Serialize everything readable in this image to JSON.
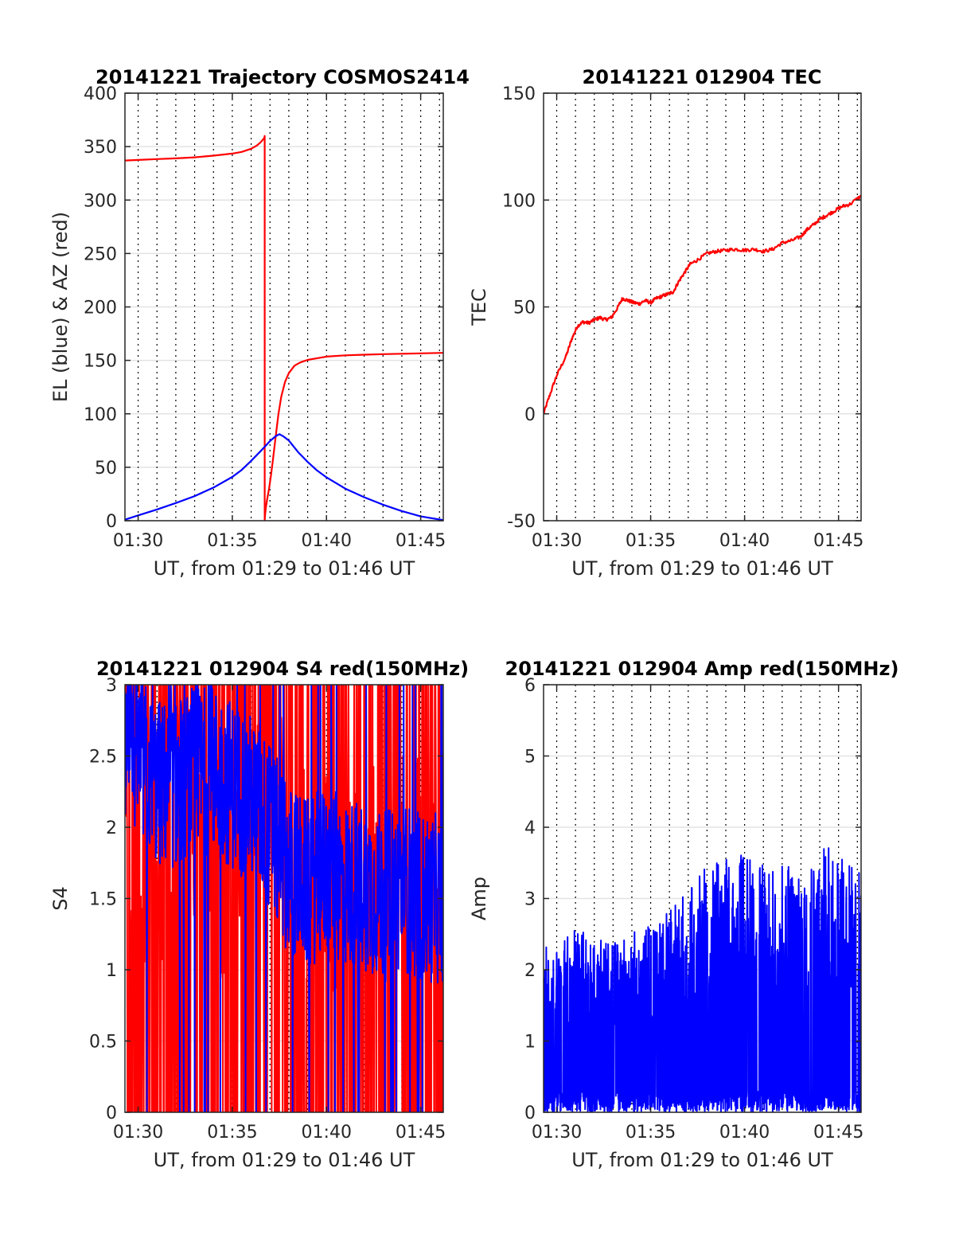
{
  "chart_data": [
    {
      "id": "trajectory",
      "type": "line",
      "title": "20141221 Trajectory COSMOS2414",
      "xlabel": "UT, from 01:29 to 01:46 UT",
      "ylabel": "EL (blue) & AZ (red)",
      "xlim": [
        29.3,
        46.2
      ],
      "ylim": [
        0,
        400
      ],
      "xticks": [
        30,
        35,
        40,
        45
      ],
      "xtick_labels": [
        "01:30",
        "01:35",
        "01:40",
        "01:45"
      ],
      "yticks": [
        0,
        50,
        100,
        150,
        200,
        250,
        300,
        350,
        400
      ],
      "grid": "major solid, minor dotted every minute",
      "series": [
        {
          "color": "#ff0000",
          "kind": "azimuth",
          "x": [
            29.3,
            30,
            31,
            32,
            33,
            34,
            35,
            35.5,
            36,
            36.3,
            36.5,
            36.7,
            36.72,
            36.72,
            36.73,
            36.78,
            36.85,
            36.95,
            37.05,
            37.15,
            37.3,
            37.45,
            37.6,
            37.8,
            38.0,
            38.3,
            38.6,
            39,
            39.5,
            40,
            41,
            42,
            43,
            44,
            45,
            46.2
          ],
          "y": [
            337,
            337.5,
            338.3,
            339,
            340,
            341.5,
            343.5,
            345,
            348,
            351,
            354,
            358,
            360,
            0,
            4,
            12,
            20,
            30,
            42,
            56,
            78,
            100,
            116,
            130,
            138,
            145,
            148,
            150.5,
            152,
            153.5,
            154.7,
            155.3,
            155.8,
            156.2,
            156.6,
            157
          ]
        },
        {
          "color": "#0000ff",
          "kind": "elevation",
          "x": [
            29.3,
            30,
            31,
            32,
            33,
            34,
            35,
            35.5,
            36,
            36.5,
            37,
            37.3,
            37.5,
            37.7,
            38,
            38.5,
            39,
            39.5,
            40,
            41,
            42,
            43,
            44,
            45,
            46.2
          ],
          "y": [
            1,
            5,
            10.5,
            16.5,
            23,
            31,
            41,
            47.5,
            56,
            65,
            74.5,
            79,
            81,
            79,
            75,
            64,
            55,
            47,
            40.5,
            30,
            22,
            15,
            9,
            4,
            0.5
          ]
        }
      ]
    },
    {
      "id": "tec",
      "type": "line",
      "title": "20141221 012904 TEC",
      "xlabel": "UT, from 01:29 to 01:46 UT",
      "ylabel": "TEC",
      "xlim": [
        29.3,
        46.2
      ],
      "ylim": [
        -50,
        150
      ],
      "xticks": [
        30,
        35,
        40,
        45
      ],
      "xtick_labels": [
        "01:30",
        "01:35",
        "01:40",
        "01:45"
      ],
      "yticks": [
        -50,
        0,
        50,
        100,
        150
      ],
      "grid": "major solid, minor dotted every minute",
      "series": [
        {
          "color": "#ff0000",
          "x": [
            29.3,
            29.6,
            30.0,
            30.5,
            30.8,
            31.1,
            31.4,
            31.7,
            32.0,
            32.3,
            32.6,
            32.9,
            33.2,
            33.5,
            33.8,
            34.1,
            34.4,
            34.7,
            35.0,
            35.3,
            35.6,
            35.9,
            36.2,
            36.5,
            36.8,
            37.1,
            37.5,
            38.0,
            38.5,
            39.0,
            39.5,
            40.0,
            40.5,
            41.0,
            41.5,
            42.0,
            42.5,
            43.0,
            43.3,
            43.6,
            44.0,
            44.4,
            44.8,
            45.2,
            45.6,
            46.2
          ],
          "y": [
            0,
            8,
            18,
            27,
            35,
            41,
            43,
            42.5,
            44,
            45,
            44,
            45,
            49,
            54,
            53,
            52,
            51.5,
            53,
            52,
            54,
            55,
            56,
            57,
            62,
            66,
            70,
            72,
            75,
            76,
            76.5,
            77,
            76.5,
            77,
            76,
            77,
            80,
            81,
            83,
            86,
            88,
            91,
            93,
            95,
            97,
            98,
            102
          ]
        }
      ]
    },
    {
      "id": "s4",
      "type": "line",
      "title": "20141221 012904 S4 red(150MHz)",
      "xlabel": "UT, from 01:29 to 01:46 UT",
      "ylabel": "S4",
      "xlim": [
        29.3,
        46.2
      ],
      "ylim": [
        0,
        3
      ],
      "xticks": [
        30,
        35,
        40,
        45
      ],
      "xtick_labels": [
        "01:30",
        "01:35",
        "01:40",
        "01:45"
      ],
      "yticks": [
        0,
        0.5,
        1,
        1.5,
        2,
        2.5,
        3
      ],
      "ytick_labels": [
        "0",
        "0.5",
        "1",
        "1.5",
        "2",
        "2.5",
        "3"
      ],
      "grid": "major solid, minor dotted every minute",
      "series": [
        {
          "color": "#ff0000",
          "note": "dense noisy trace saturating 0-3 range",
          "x": [
            29.3,
            33.5,
            34.5,
            36.0,
            37.5,
            38.0,
            39.5,
            46.2
          ],
          "y": [
            1.5,
            2.2,
            1.6,
            2.4,
            2.2,
            1.8,
            1.6,
            1.8
          ]
        },
        {
          "color": "#0000ff",
          "note": "dense noisy trace",
          "x": [
            29.3,
            30.0,
            31.0,
            32.0,
            33.0,
            34.0,
            35.0,
            36.0,
            37.0,
            38.0,
            39.0,
            40.0,
            41.0,
            42.0,
            43.0,
            44.0,
            45.0,
            46.2
          ],
          "y": [
            2.6,
            2.5,
            2.3,
            2.3,
            2.4,
            2.4,
            2.3,
            2.2,
            2.0,
            1.7,
            1.6,
            1.7,
            1.6,
            1.6,
            1.5,
            1.6,
            1.5,
            1.5
          ]
        }
      ]
    },
    {
      "id": "amp",
      "type": "line",
      "title": "20141221 012904 Amp red(150MHz)",
      "xlabel": "UT, from 01:29 to 01:46 UT",
      "ylabel": "Amp",
      "xlim": [
        29.3,
        46.2
      ],
      "ylim": [
        0,
        6
      ],
      "xticks": [
        30,
        35,
        40,
        45
      ],
      "xtick_labels": [
        "01:30",
        "01:35",
        "01:40",
        "01:45"
      ],
      "yticks": [
        0,
        1,
        2,
        3,
        4,
        5,
        6
      ],
      "grid": "major solid, minor dotted every minute",
      "series": [
        {
          "color": "#0000ff",
          "note": "dense amplitude trace; envelope of peaks",
          "x": [
            29.3,
            30.0,
            31.0,
            32.0,
            33.0,
            34.0,
            35.0,
            36.0,
            37.0,
            38.0,
            39.0,
            40.0,
            41.0,
            42.0,
            43.0,
            44.0,
            45.0,
            46.2
          ],
          "y": [
            2.2,
            2.3,
            2.5,
            2.3,
            2.3,
            2.4,
            2.5,
            2.7,
            3.0,
            3.3,
            3.4,
            3.5,
            3.3,
            3.3,
            3.4,
            3.6,
            3.5,
            3.2
          ]
        }
      ]
    }
  ]
}
